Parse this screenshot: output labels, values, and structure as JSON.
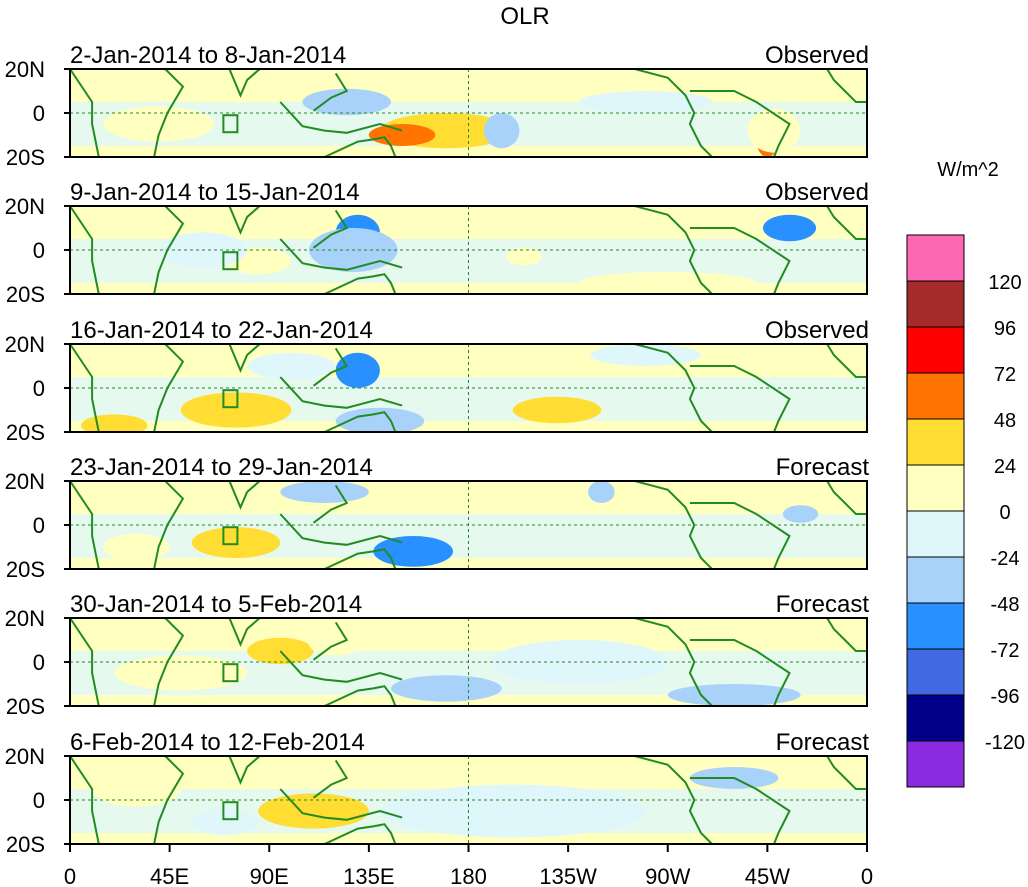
{
  "chart_data": {
    "type": "heatmap",
    "title": "OLR",
    "units": "W/m^2",
    "xlabel": "",
    "ylabel": "",
    "x_ticks": [
      "0",
      "45E",
      "90E",
      "135E",
      "180",
      "135W",
      "90W",
      "45W",
      "0"
    ],
    "x_range": [
      0,
      360
    ],
    "y_ticks": [
      "20N",
      "0",
      "20S"
    ],
    "y_range": [
      -20,
      20
    ],
    "colorbar": {
      "labels": [
        "120",
        "96",
        "72",
        "48",
        "24",
        "0",
        "-24",
        "-48",
        "-72",
        "-96",
        "-120"
      ],
      "colors": [
        "#ff69b4",
        "#a52a2a",
        "#ff0000",
        "#ff7300",
        "#ffdd33",
        "#ffffc0",
        "#dff7fa",
        "#a8d2fa",
        "#2891ff",
        "#4169e1",
        "#00008b",
        "#8a2be2"
      ]
    },
    "panels": [
      {
        "period": "2-Jan-2014 to 8-Jan-2014",
        "status": "Observed",
        "anomalies": [
          {
            "lon": 170,
            "lat": -8,
            "value": 40,
            "rx": 30,
            "ry": 8
          },
          {
            "lon": 150,
            "lat": -10,
            "value": 55,
            "rx": 15,
            "ry": 5
          },
          {
            "lon": 315,
            "lat": -12,
            "value": 50,
            "rx": 5,
            "ry": 8
          },
          {
            "lon": 318,
            "lat": -8,
            "value": 20,
            "rx": 12,
            "ry": 10
          },
          {
            "lon": 195,
            "lat": -8,
            "value": -35,
            "rx": 8,
            "ry": 8
          },
          {
            "lon": 125,
            "lat": 5,
            "value": -25,
            "rx": 20,
            "ry": 6
          },
          {
            "lon": 40,
            "lat": -5,
            "value": 15,
            "rx": 25,
            "ry": 8
          },
          {
            "lon": 260,
            "lat": 5,
            "value": -15,
            "rx": 30,
            "ry": 5
          }
        ]
      },
      {
        "period": "9-Jan-2014 to 15-Jan-2014",
        "status": "Observed",
        "anomalies": [
          {
            "lon": 130,
            "lat": 8,
            "value": -70,
            "rx": 10,
            "ry": 8
          },
          {
            "lon": 128,
            "lat": 0,
            "value": -40,
            "rx": 20,
            "ry": 10
          },
          {
            "lon": 325,
            "lat": 10,
            "value": -50,
            "rx": 12,
            "ry": 6
          },
          {
            "lon": 85,
            "lat": -5,
            "value": 20,
            "rx": 15,
            "ry": 6
          },
          {
            "lon": 270,
            "lat": -15,
            "value": 15,
            "rx": 40,
            "ry": 5
          },
          {
            "lon": 205,
            "lat": -3,
            "value": 20,
            "rx": 8,
            "ry": 4
          },
          {
            "lon": 60,
            "lat": 0,
            "value": -20,
            "rx": 20,
            "ry": 8
          }
        ]
      },
      {
        "period": "16-Jan-2014 to 22-Jan-2014",
        "status": "Observed",
        "anomalies": [
          {
            "lon": 130,
            "lat": 8,
            "value": -50,
            "rx": 10,
            "ry": 8
          },
          {
            "lon": 140,
            "lat": -15,
            "value": -40,
            "rx": 20,
            "ry": 6
          },
          {
            "lon": 220,
            "lat": -10,
            "value": 25,
            "rx": 20,
            "ry": 6
          },
          {
            "lon": 75,
            "lat": -10,
            "value": 30,
            "rx": 25,
            "ry": 8
          },
          {
            "lon": 20,
            "lat": -17,
            "value": 40,
            "rx": 15,
            "ry": 5
          },
          {
            "lon": 260,
            "lat": 15,
            "value": -20,
            "rx": 25,
            "ry": 5
          },
          {
            "lon": 100,
            "lat": 10,
            "value": -15,
            "rx": 20,
            "ry": 6
          }
        ]
      },
      {
        "period": "23-Jan-2014 to 29-Jan-2014",
        "status": "Forecast",
        "anomalies": [
          {
            "lon": 155,
            "lat": -12,
            "value": -60,
            "rx": 18,
            "ry": 7
          },
          {
            "lon": 240,
            "lat": 15,
            "value": -45,
            "rx": 6,
            "ry": 5
          },
          {
            "lon": 330,
            "lat": 5,
            "value": -40,
            "rx": 8,
            "ry": 4
          },
          {
            "lon": 75,
            "lat": -8,
            "value": 35,
            "rx": 20,
            "ry": 7
          },
          {
            "lon": 115,
            "lat": 15,
            "value": -25,
            "rx": 20,
            "ry": 5
          },
          {
            "lon": 30,
            "lat": -10,
            "value": 15,
            "rx": 15,
            "ry": 6
          }
        ]
      },
      {
        "period": "30-Jan-2014 to 5-Feb-2014",
        "status": "Forecast",
        "anomalies": [
          {
            "lon": 170,
            "lat": -12,
            "value": -45,
            "rx": 25,
            "ry": 6
          },
          {
            "lon": 95,
            "lat": 5,
            "value": 25,
            "rx": 15,
            "ry": 6
          },
          {
            "lon": 120,
            "lat": 8,
            "value": 20,
            "rx": 12,
            "ry": 5
          },
          {
            "lon": 300,
            "lat": -15,
            "value": -25,
            "rx": 30,
            "ry": 5
          },
          {
            "lon": 230,
            "lat": 0,
            "value": -15,
            "rx": 40,
            "ry": 10
          },
          {
            "lon": 50,
            "lat": -5,
            "value": 10,
            "rx": 30,
            "ry": 8
          }
        ]
      },
      {
        "period": "6-Feb-2014 to 12-Feb-2014",
        "status": "Forecast",
        "anomalies": [
          {
            "lon": 110,
            "lat": -5,
            "value": 35,
            "rx": 25,
            "ry": 8
          },
          {
            "lon": 70,
            "lat": -10,
            "value": -20,
            "rx": 15,
            "ry": 6
          },
          {
            "lon": 300,
            "lat": 10,
            "value": -25,
            "rx": 20,
            "ry": 5
          },
          {
            "lon": 200,
            "lat": -5,
            "value": -15,
            "rx": 60,
            "ry": 12
          },
          {
            "lon": 30,
            "lat": 5,
            "value": 15,
            "rx": 20,
            "ry": 8
          }
        ]
      }
    ]
  }
}
